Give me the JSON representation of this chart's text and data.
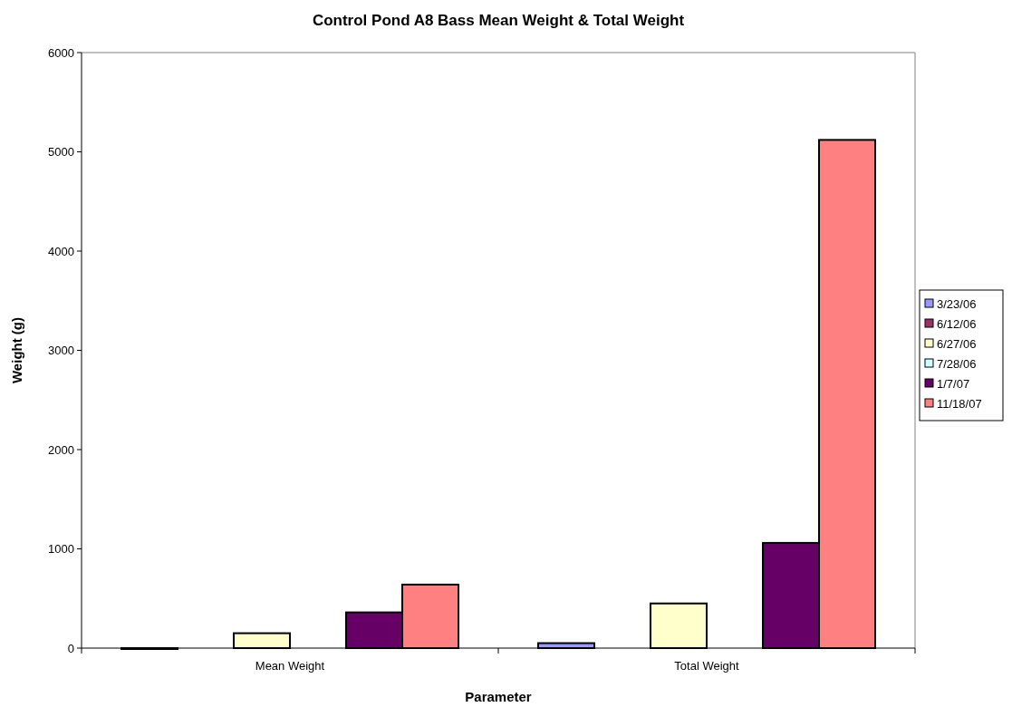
{
  "chart_data": {
    "type": "bar",
    "title": "Control Pond A8 Bass Mean Weight & Total Weight",
    "xlabel": "Parameter",
    "ylabel": "Weight (g)",
    "categories": [
      "Mean Weight",
      "Total Weight"
    ],
    "series": [
      {
        "name": "3/23/06",
        "color": "#9999ff",
        "values": [
          0,
          50
        ]
      },
      {
        "name": "6/12/06",
        "color": "#993366",
        "values": [
          null,
          null
        ]
      },
      {
        "name": "6/27/06",
        "color": "#ffffcc",
        "values": [
          150,
          450
        ]
      },
      {
        "name": "7/28/06",
        "color": "#ccffff",
        "values": [
          null,
          null
        ]
      },
      {
        "name": "1/7/07",
        "color": "#660066",
        "values": [
          360,
          1060
        ]
      },
      {
        "name": "11/18/07",
        "color": "#ff8080",
        "values": [
          640,
          5120
        ]
      }
    ],
    "ylim": [
      0,
      6000
    ],
    "yticks": [
      0,
      1000,
      2000,
      3000,
      4000,
      5000,
      6000
    ],
    "grid": false,
    "legend": "right"
  }
}
